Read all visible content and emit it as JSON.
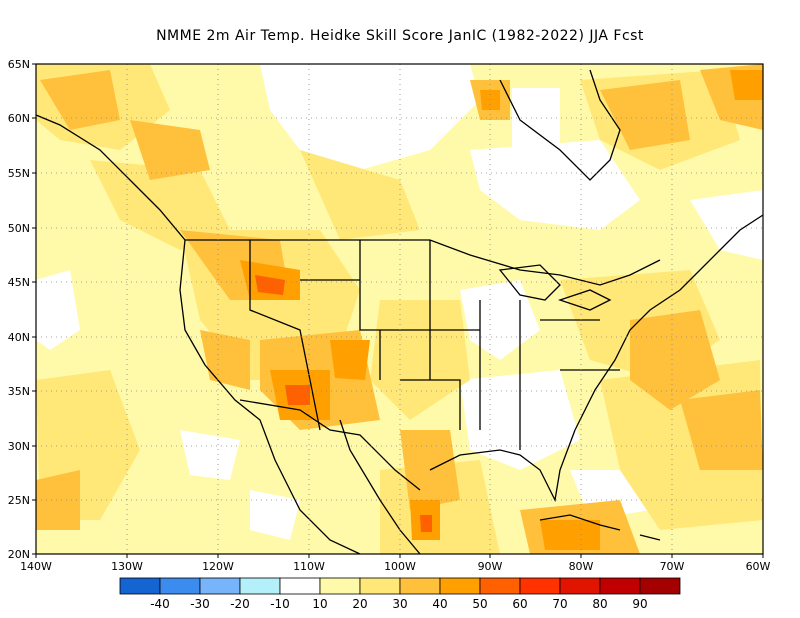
{
  "title": "NMME  2m Air Temp. Heidke Skill Score JanIC (1982-2022) JJA Fcst",
  "map": {
    "lat_labels": [
      "65N",
      "60N",
      "55N",
      "50N",
      "45N",
      "40N",
      "35N",
      "30N",
      "25N",
      "20N"
    ],
    "lon_labels": [
      "140W",
      "130W",
      "120W",
      "110W",
      "100W",
      "90W",
      "80W",
      "70W",
      "60W"
    ],
    "lat_range": [
      20,
      65
    ],
    "lon_range": [
      -140,
      -60
    ],
    "grid": "dotted"
  },
  "colorbar": {
    "colors": [
      "#1464d2",
      "#3c8cf0",
      "#78b4fa",
      "#b4f0fa",
      "#ffffff",
      "#fffaaa",
      "#ffe878",
      "#ffc03c",
      "#ffa000",
      "#ff6000",
      "#ff3200",
      "#e11400",
      "#c00000",
      "#a50000"
    ],
    "labels": [
      "-40",
      "-30",
      "-20",
      "-10",
      "10",
      "20",
      "30",
      "40",
      "50",
      "60",
      "70",
      "80",
      "90"
    ]
  },
  "legend_colors": {
    "c20": "#fffaaa",
    "c30": "#ffe878",
    "c40": "#ffc03c",
    "c50": "#ffa000",
    "c60": "#ff6000"
  }
}
